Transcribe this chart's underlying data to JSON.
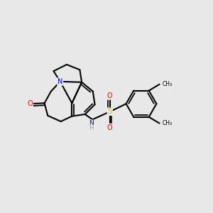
{
  "background_color": "#e8e8e8",
  "bond_color": "#000000",
  "atom_colors": {
    "N": "#0000FF",
    "O": "#FF0000",
    "S": "#CCCC00",
    "H": "#999999",
    "C": "#000000"
  },
  "figsize": [
    3.0,
    3.0
  ],
  "dpi": 100
}
